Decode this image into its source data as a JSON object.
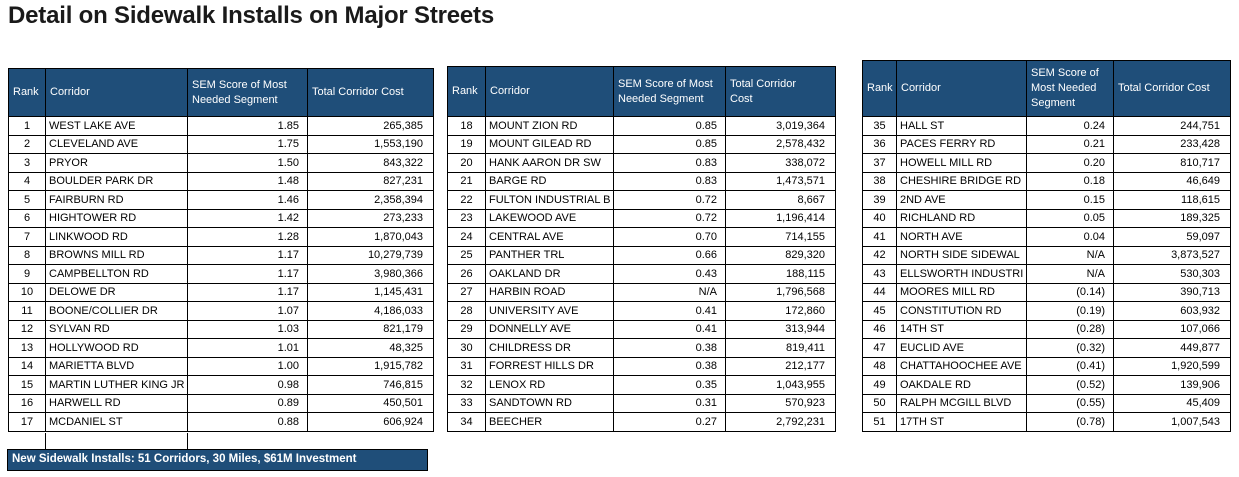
{
  "title": "Detail on Sidewalk Installs on Major Streets",
  "columns": [
    "Rank",
    "Corridor",
    "SEM Score of Most Needed Segment",
    "Total Corridor Cost"
  ],
  "colors": {
    "header_bg": "#1F4E79",
    "header_text": "#FFFFFF",
    "banner_bg": "#1F4E79",
    "border": "#000000"
  },
  "tables": [
    {
      "name": "ranks-1-17",
      "rows": [
        [
          "1",
          "WEST LAKE AVE",
          "1.85",
          "265,385"
        ],
        [
          "2",
          "CLEVELAND AVE",
          "1.75",
          "1,553,190"
        ],
        [
          "3",
          "PRYOR",
          "1.50",
          "843,322"
        ],
        [
          "4",
          "BOULDER PARK DR",
          "1.48",
          "827,231"
        ],
        [
          "5",
          "FAIRBURN RD",
          "1.46",
          "2,358,394"
        ],
        [
          "6",
          "HIGHTOWER RD",
          "1.42",
          "273,233"
        ],
        [
          "7",
          "LINKWOOD RD",
          "1.28",
          "1,870,043"
        ],
        [
          "8",
          "BROWNS MILL RD",
          "1.17",
          "10,279,739"
        ],
        [
          "9",
          "CAMPBELLTON RD",
          "1.17",
          "3,980,366"
        ],
        [
          "10",
          "DELOWE DR",
          "1.17",
          "1,145,431"
        ],
        [
          "11",
          "BOONE/COLLIER DR",
          "1.07",
          "4,186,033"
        ],
        [
          "12",
          "SYLVAN RD",
          "1.03",
          "821,179"
        ],
        [
          "13",
          "HOLLYWOOD RD",
          "1.01",
          "48,325"
        ],
        [
          "14",
          "MARIETTA BLVD",
          "1.00",
          "1,915,782"
        ],
        [
          "15",
          "MARTIN LUTHER KING JR",
          "0.98",
          "746,815"
        ],
        [
          "16",
          "HARWELL RD",
          "0.89",
          "450,501"
        ],
        [
          "17",
          "MCDANIEL ST",
          "0.88",
          "606,924"
        ]
      ]
    },
    {
      "name": "ranks-18-34",
      "rows": [
        [
          "18",
          "MOUNT ZION RD",
          "0.85",
          "3,019,364"
        ],
        [
          "19",
          "MOUNT GILEAD RD",
          "0.85",
          "2,578,432"
        ],
        [
          "20",
          "HANK AARON DR SW",
          "0.83",
          "338,072"
        ],
        [
          "21",
          "BARGE RD",
          "0.83",
          "1,473,571"
        ],
        [
          "22",
          "FULTON INDUSTRIAL B",
          "0.72",
          "8,667"
        ],
        [
          "23",
          "LAKEWOOD AVE",
          "0.72",
          "1,196,414"
        ],
        [
          "24",
          "CENTRAL AVE",
          "0.70",
          "714,155"
        ],
        [
          "25",
          "PANTHER TRL",
          "0.66",
          "829,320"
        ],
        [
          "26",
          "OAKLAND DR",
          "0.43",
          "188,115"
        ],
        [
          "27",
          "HARBIN ROAD",
          "N/A",
          "1,796,568"
        ],
        [
          "28",
          "UNIVERSITY AVE",
          "0.41",
          "172,860"
        ],
        [
          "29",
          "DONNELLY AVE",
          "0.41",
          "313,944"
        ],
        [
          "30",
          "CHILDRESS DR",
          "0.38",
          "819,411"
        ],
        [
          "31",
          "FORREST HILLS DR",
          "0.38",
          "212,177"
        ],
        [
          "32",
          "LENOX RD",
          "0.35",
          "1,043,955"
        ],
        [
          "33",
          "SANDTOWN RD",
          "0.31",
          "570,923"
        ],
        [
          "34",
          "BEECHER",
          "0.27",
          "2,792,231"
        ]
      ]
    },
    {
      "name": "ranks-35-51",
      "rows": [
        [
          "35",
          "HALL ST",
          "0.24",
          "244,751"
        ],
        [
          "36",
          "PACES FERRY RD",
          "0.21",
          "233,428"
        ],
        [
          "37",
          "HOWELL MILL RD",
          "0.20",
          "810,717"
        ],
        [
          "38",
          "CHESHIRE BRIDGE RD",
          "0.18",
          "46,649"
        ],
        [
          "39",
          "2ND AVE",
          "0.15",
          "118,615"
        ],
        [
          "40",
          "RICHLAND RD",
          "0.05",
          "189,325"
        ],
        [
          "41",
          "NORTH AVE",
          "0.04",
          "59,097"
        ],
        [
          "42",
          "NORTH SIDE SIDEWAL",
          "N/A",
          "3,873,527"
        ],
        [
          "43",
          "ELLSWORTH INDUSTRI",
          "N/A",
          "530,303"
        ],
        [
          "44",
          "MOORES MILL RD",
          "(0.14)",
          "390,713"
        ],
        [
          "45",
          "CONSTITUTION RD",
          "(0.19)",
          "603,932"
        ],
        [
          "46",
          "14TH ST",
          "(0.28)",
          "107,066"
        ],
        [
          "47",
          "EUCLID AVE",
          "(0.32)",
          "449,877"
        ],
        [
          "48",
          "CHATTAHOOCHEE AVE",
          "(0.41)",
          "1,920,599"
        ],
        [
          "49",
          "OAKDALE RD",
          "(0.52)",
          "139,906"
        ],
        [
          "50",
          "RALPH MCGILL BLVD",
          "(0.55)",
          "45,409"
        ],
        [
          "51",
          "17TH ST",
          "(0.78)",
          "1,007,543"
        ]
      ]
    }
  ],
  "footer_banner": "New Sidewalk Installs: 51 Corridors, 30 Miles, $61M Investment"
}
